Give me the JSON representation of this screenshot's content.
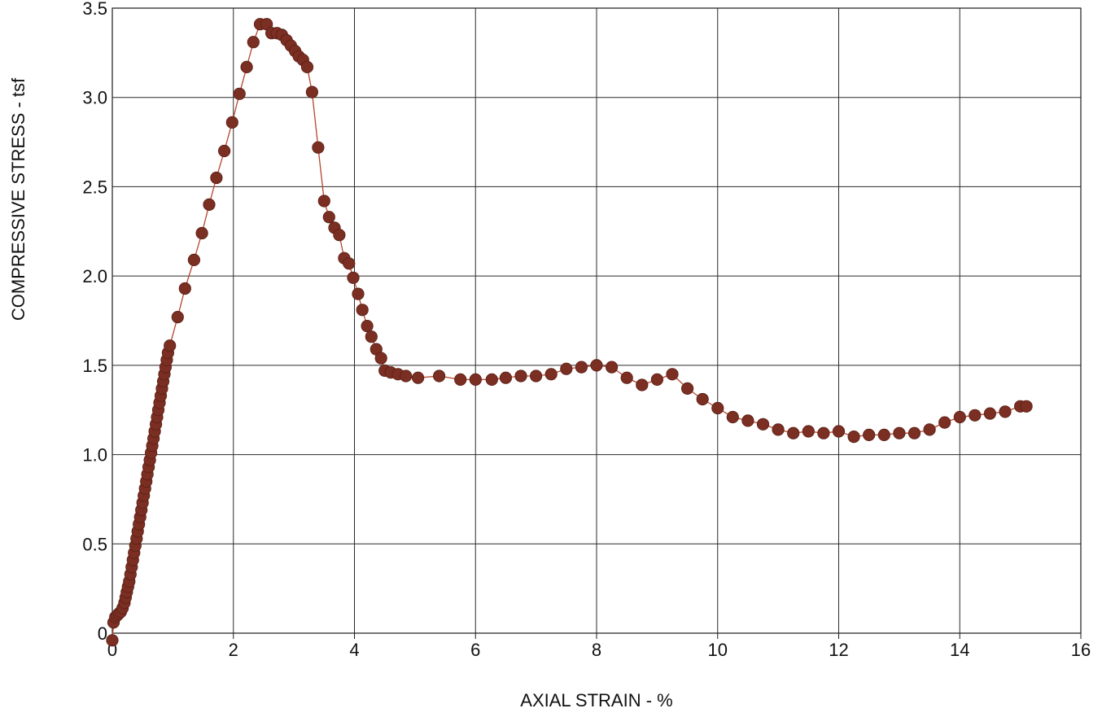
{
  "chart_data": {
    "type": "scatter",
    "title": "",
    "xlabel": "AXIAL STRAIN - %",
    "ylabel": "COMPRESSIVE STRESS - tsf",
    "xlim": [
      0,
      16
    ],
    "ylim": [
      0,
      3.5
    ],
    "x_ticks": [
      0,
      2,
      4,
      6,
      8,
      10,
      12,
      14,
      16
    ],
    "x_tick_labels": [
      "0",
      "2",
      "4",
      "6",
      "8",
      "10",
      "12",
      "14",
      "16"
    ],
    "y_ticks": [
      0,
      0.5,
      1.0,
      1.5,
      2.0,
      2.5,
      3.0,
      3.5
    ],
    "y_tick_labels": [
      "0",
      "0.5",
      "1.0",
      "1.5",
      "2.0",
      "2.5",
      "3.0",
      "3.5"
    ],
    "grid": true,
    "line_connected": true,
    "marker_color": "#7b2e22",
    "line_color": "#b5452c",
    "series": [
      {
        "values": [
          [
            0.0,
            -0.04
          ],
          [
            0.02,
            0.06
          ],
          [
            0.05,
            0.09
          ],
          [
            0.08,
            0.1
          ],
          [
            0.11,
            0.11
          ],
          [
            0.14,
            0.12
          ],
          [
            0.17,
            0.14
          ],
          [
            0.2,
            0.17
          ],
          [
            0.22,
            0.2
          ],
          [
            0.24,
            0.23
          ],
          [
            0.26,
            0.26
          ],
          [
            0.28,
            0.29
          ],
          [
            0.3,
            0.33
          ],
          [
            0.32,
            0.37
          ],
          [
            0.34,
            0.41
          ],
          [
            0.36,
            0.45
          ],
          [
            0.38,
            0.49
          ],
          [
            0.4,
            0.53
          ],
          [
            0.42,
            0.57
          ],
          [
            0.44,
            0.61
          ],
          [
            0.46,
            0.65
          ],
          [
            0.48,
            0.69
          ],
          [
            0.5,
            0.73
          ],
          [
            0.52,
            0.77
          ],
          [
            0.54,
            0.81
          ],
          [
            0.56,
            0.85
          ],
          [
            0.58,
            0.89
          ],
          [
            0.6,
            0.93
          ],
          [
            0.62,
            0.97
          ],
          [
            0.64,
            1.01
          ],
          [
            0.66,
            1.05
          ],
          [
            0.68,
            1.09
          ],
          [
            0.7,
            1.13
          ],
          [
            0.72,
            1.17
          ],
          [
            0.74,
            1.21
          ],
          [
            0.76,
            1.25
          ],
          [
            0.78,
            1.29
          ],
          [
            0.8,
            1.33
          ],
          [
            0.82,
            1.37
          ],
          [
            0.84,
            1.41
          ],
          [
            0.86,
            1.45
          ],
          [
            0.88,
            1.49
          ],
          [
            0.9,
            1.53
          ],
          [
            0.92,
            1.57
          ],
          [
            0.95,
            1.61
          ],
          [
            1.08,
            1.77
          ],
          [
            1.2,
            1.93
          ],
          [
            1.35,
            2.09
          ],
          [
            1.48,
            2.24
          ],
          [
            1.6,
            2.4
          ],
          [
            1.72,
            2.55
          ],
          [
            1.85,
            2.7
          ],
          [
            1.98,
            2.86
          ],
          [
            2.1,
            3.02
          ],
          [
            2.22,
            3.17
          ],
          [
            2.33,
            3.31
          ],
          [
            2.44,
            3.41
          ],
          [
            2.55,
            3.41
          ],
          [
            2.63,
            3.36
          ],
          [
            2.72,
            3.36
          ],
          [
            2.8,
            3.35
          ],
          [
            2.88,
            3.32
          ],
          [
            2.95,
            3.29
          ],
          [
            3.02,
            3.26
          ],
          [
            3.08,
            3.23
          ],
          [
            3.15,
            3.21
          ],
          [
            3.22,
            3.17
          ],
          [
            3.3,
            3.03
          ],
          [
            3.4,
            2.72
          ],
          [
            3.5,
            2.42
          ],
          [
            3.58,
            2.33
          ],
          [
            3.67,
            2.27
          ],
          [
            3.75,
            2.23
          ],
          [
            3.83,
            2.1
          ],
          [
            3.91,
            2.07
          ],
          [
            3.98,
            1.99
          ],
          [
            4.06,
            1.9
          ],
          [
            4.13,
            1.81
          ],
          [
            4.21,
            1.72
          ],
          [
            4.28,
            1.66
          ],
          [
            4.36,
            1.59
          ],
          [
            4.44,
            1.54
          ],
          [
            4.5,
            1.47
          ],
          [
            4.6,
            1.46
          ],
          [
            4.72,
            1.45
          ],
          [
            4.85,
            1.44
          ],
          [
            5.05,
            1.43
          ],
          [
            5.4,
            1.44
          ],
          [
            5.75,
            1.42
          ],
          [
            6.0,
            1.42
          ],
          [
            6.27,
            1.42
          ],
          [
            6.5,
            1.43
          ],
          [
            6.75,
            1.44
          ],
          [
            7.0,
            1.44
          ],
          [
            7.25,
            1.45
          ],
          [
            7.5,
            1.48
          ],
          [
            7.75,
            1.49
          ],
          [
            8.0,
            1.5
          ],
          [
            8.25,
            1.49
          ],
          [
            8.5,
            1.43
          ],
          [
            8.75,
            1.39
          ],
          [
            9.0,
            1.42
          ],
          [
            9.25,
            1.45
          ],
          [
            9.5,
            1.37
          ],
          [
            9.75,
            1.31
          ],
          [
            10.0,
            1.26
          ],
          [
            10.25,
            1.21
          ],
          [
            10.5,
            1.19
          ],
          [
            10.75,
            1.17
          ],
          [
            11.0,
            1.14
          ],
          [
            11.25,
            1.12
          ],
          [
            11.5,
            1.13
          ],
          [
            11.75,
            1.12
          ],
          [
            12.0,
            1.13
          ],
          [
            12.25,
            1.1
          ],
          [
            12.5,
            1.11
          ],
          [
            12.75,
            1.11
          ],
          [
            13.0,
            1.12
          ],
          [
            13.25,
            1.12
          ],
          [
            13.5,
            1.14
          ],
          [
            13.75,
            1.18
          ],
          [
            14.0,
            1.21
          ],
          [
            14.25,
            1.22
          ],
          [
            14.5,
            1.23
          ],
          [
            14.75,
            1.24
          ],
          [
            15.0,
            1.27
          ],
          [
            15.1,
            1.27
          ]
        ]
      }
    ]
  }
}
